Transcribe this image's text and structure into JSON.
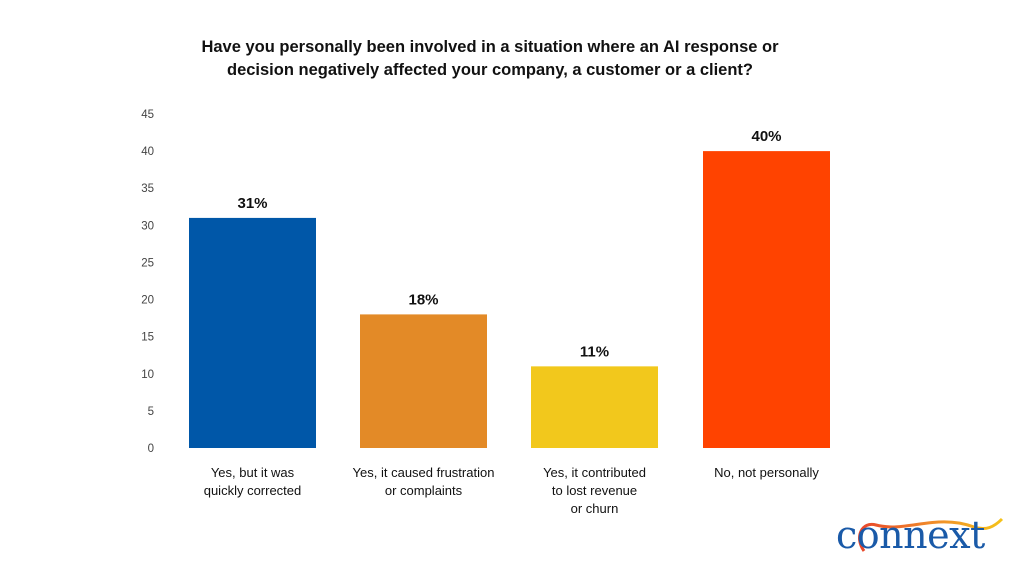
{
  "chart_data": {
    "type": "bar",
    "title": [
      "Have you personally been involved in a situation where an AI response or",
      "decision negatively affected your company, a customer or a client?"
    ],
    "categories": [
      [
        "Yes, but it was",
        "quickly corrected"
      ],
      [
        "Yes, it caused frustration",
        "or complaints"
      ],
      [
        "Yes, it contributed",
        "to lost revenue",
        "or churn"
      ],
      [
        "No, not personally"
      ]
    ],
    "values": [
      31,
      18,
      11,
      40
    ],
    "data_labels": [
      "31%",
      "18%",
      "11%",
      "40%"
    ],
    "colors": [
      "#0057a8",
      "#e38a27",
      "#f2c81c",
      "#ff4300"
    ],
    "xlabel": "",
    "ylabel": "",
    "ylim": [
      0,
      45
    ],
    "yticks": [
      "0",
      "5",
      "10",
      "15",
      "20",
      "25",
      "30",
      "35",
      "40",
      "45"
    ],
    "grid": false,
    "legend": "none"
  },
  "logo": {
    "text": "connext",
    "colors": [
      "#1a5aa8",
      "#e8452a",
      "#f5b21a"
    ]
  }
}
